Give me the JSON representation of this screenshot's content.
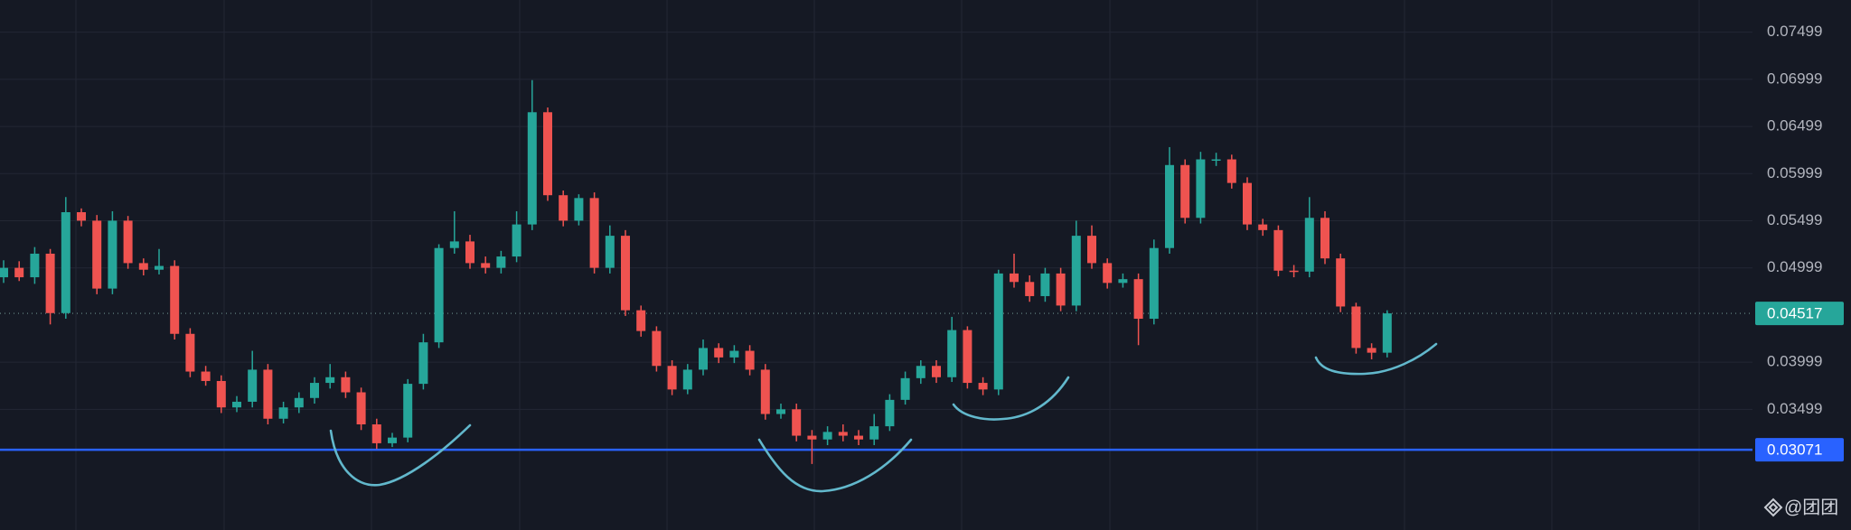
{
  "chart_data": {
    "type": "candlestick",
    "open": [
      0.049,
      0.05,
      0.049,
      0.0515,
      0.0452,
      0.0559,
      0.055,
      0.0478,
      0.055,
      0.0505,
      0.0498,
      0.0502,
      0.043,
      0.039,
      0.038,
      0.0352,
      0.0358,
      0.0392,
      0.034,
      0.0352,
      0.0362,
      0.0378,
      0.0384,
      0.0368,
      0.0334,
      0.0314,
      0.032,
      0.0377,
      0.0421,
      0.0521,
      0.0528,
      0.0505,
      0.05,
      0.0512,
      0.0546,
      0.0665,
      0.0577,
      0.055,
      0.0574,
      0.05,
      0.0534,
      0.0455,
      0.0433,
      0.0396,
      0.0371,
      0.0392,
      0.0415,
      0.0405,
      0.0412,
      0.0392,
      0.0345,
      0.035,
      0.0322,
      0.0318,
      0.0326,
      0.0322,
      0.0318,
      0.0332,
      0.036,
      0.0383,
      0.0396,
      0.0384,
      0.0434,
      0.0378,
      0.0371,
      0.0494,
      0.0485,
      0.047,
      0.0494,
      0.046,
      0.0534,
      0.0505,
      0.0484,
      0.0488,
      0.0446,
      0.0521,
      0.0609,
      0.0553,
      0.0615,
      0.0615,
      0.059,
      0.0546,
      0.054,
      0.0497,
      0.0496,
      0.0553,
      0.051,
      0.0459,
      0.0415,
      0.041
    ],
    "high": [
      0.0508,
      0.0507,
      0.0522,
      0.052,
      0.0575,
      0.0563,
      0.0556,
      0.056,
      0.0555,
      0.051,
      0.052,
      0.0508,
      0.0436,
      0.0396,
      0.0386,
      0.0364,
      0.0412,
      0.0398,
      0.0358,
      0.0368,
      0.0384,
      0.0398,
      0.039,
      0.0373,
      0.034,
      0.0325,
      0.0382,
      0.043,
      0.0525,
      0.056,
      0.0535,
      0.0512,
      0.0518,
      0.056,
      0.0699,
      0.067,
      0.0582,
      0.0578,
      0.058,
      0.0545,
      0.054,
      0.046,
      0.0438,
      0.0402,
      0.0398,
      0.0424,
      0.042,
      0.0418,
      0.0418,
      0.0398,
      0.0356,
      0.0356,
      0.0328,
      0.0332,
      0.0334,
      0.0328,
      0.0345,
      0.0366,
      0.039,
      0.0402,
      0.0402,
      0.0448,
      0.0438,
      0.0384,
      0.0498,
      0.0515,
      0.0492,
      0.05,
      0.05,
      0.055,
      0.0545,
      0.051,
      0.0494,
      0.0494,
      0.053,
      0.0628,
      0.0615,
      0.0623,
      0.0622,
      0.062,
      0.0596,
      0.0552,
      0.0545,
      0.0503,
      0.0575,
      0.056,
      0.0515,
      0.0463,
      0.042,
      0.0455
    ],
    "low": [
      0.0484,
      0.0486,
      0.0483,
      0.044,
      0.0446,
      0.0544,
      0.0472,
      0.0472,
      0.0499,
      0.0492,
      0.0493,
      0.0424,
      0.0384,
      0.0375,
      0.0346,
      0.0347,
      0.0352,
      0.0334,
      0.0335,
      0.0346,
      0.0356,
      0.0372,
      0.0362,
      0.0328,
      0.0308,
      0.031,
      0.0315,
      0.0371,
      0.0415,
      0.0515,
      0.0499,
      0.0494,
      0.0494,
      0.0506,
      0.054,
      0.0571,
      0.0544,
      0.0545,
      0.0494,
      0.0494,
      0.0449,
      0.0427,
      0.039,
      0.0365,
      0.0366,
      0.0386,
      0.0399,
      0.0399,
      0.0386,
      0.0339,
      0.034,
      0.0316,
      0.0292,
      0.0312,
      0.0316,
      0.0312,
      0.0312,
      0.0327,
      0.0355,
      0.0377,
      0.0378,
      0.0379,
      0.0372,
      0.0365,
      0.0365,
      0.0479,
      0.0464,
      0.0464,
      0.0454,
      0.0454,
      0.0499,
      0.0478,
      0.0479,
      0.0418,
      0.044,
      0.0515,
      0.0547,
      0.0547,
      0.0608,
      0.0584,
      0.054,
      0.0534,
      0.0491,
      0.049,
      0.049,
      0.0504,
      0.0453,
      0.0409,
      0.0403,
      0.0405
    ],
    "close": [
      0.05,
      0.049,
      0.0515,
      0.0452,
      0.0559,
      0.055,
      0.0478,
      0.055,
      0.0505,
      0.0498,
      0.0502,
      0.043,
      0.039,
      0.038,
      0.0352,
      0.0358,
      0.0392,
      0.034,
      0.0352,
      0.0362,
      0.0378,
      0.0384,
      0.0368,
      0.0334,
      0.0314,
      0.032,
      0.0377,
      0.0421,
      0.0521,
      0.0528,
      0.0505,
      0.05,
      0.0512,
      0.0546,
      0.0665,
      0.0577,
      0.055,
      0.0574,
      0.05,
      0.0534,
      0.0455,
      0.0433,
      0.0396,
      0.0371,
      0.0392,
      0.0415,
      0.0405,
      0.0412,
      0.0392,
      0.0345,
      0.035,
      0.0322,
      0.0318,
      0.0326,
      0.0322,
      0.0318,
      0.0332,
      0.036,
      0.0383,
      0.0396,
      0.0384,
      0.0434,
      0.0378,
      0.0371,
      0.0494,
      0.0485,
      0.047,
      0.0494,
      0.046,
      0.0534,
      0.0505,
      0.0484,
      0.0488,
      0.0446,
      0.0521,
      0.0609,
      0.0553,
      0.0615,
      0.0615,
      0.059,
      0.0546,
      0.054,
      0.0497,
      0.0496,
      0.0553,
      0.051,
      0.0459,
      0.0415,
      0.041,
      0.04517
    ],
    "up_color": "#26a69a",
    "down_color": "#ef5350",
    "ylim": [
      0.0222,
      0.0784
    ],
    "yticks": [
      0.03499,
      0.03999,
      0.04999,
      0.05499,
      0.05999,
      0.06499,
      0.06999,
      0.07499
    ],
    "grid": true,
    "markers": [
      {
        "value": 0.04517,
        "color": "#26a69a",
        "style": "dotted"
      },
      {
        "value": 0.03071,
        "color": "#2962ff",
        "style": "solid"
      }
    ],
    "watermark": "@团团"
  }
}
